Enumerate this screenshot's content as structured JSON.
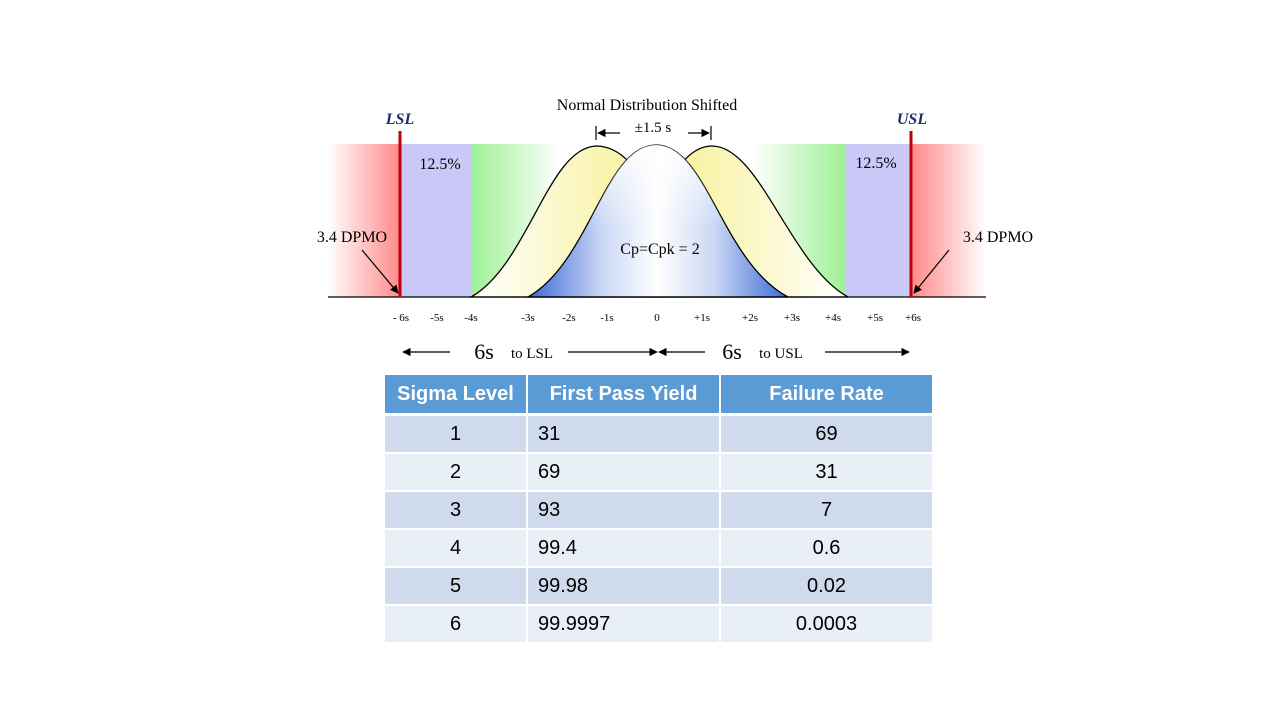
{
  "diagram": {
    "title": "Normal Distribution Shifted",
    "shift_label": "±1.5 s",
    "lsl_label": "LSL",
    "usl_label": "USL",
    "left_pct": "12.5%",
    "right_pct": "12.5%",
    "left_dpmo": "3.4 DPMO",
    "right_dpmo": "3.4 DPMO",
    "center_label": "Cp=Cpk = 2",
    "ticks": [
      "- 6s",
      "-5s",
      "-4s",
      "-3s",
      "-2s",
      "-1s",
      "0",
      "+1s",
      "+2s",
      "+3s",
      "+4s",
      "+5s",
      "+6s"
    ],
    "span_left_big": "6s",
    "span_left_small": "to LSL",
    "span_right_big": "6s",
    "span_right_small": "to USL",
    "colors": {
      "spec_line": "#c00000",
      "spec_label": "#1f2a6b",
      "red_zone": "#ff8a8a",
      "purple_zone": "#c9c8f7",
      "green_zone": "#aef0a6",
      "yellow_curve": "#f8f3a0",
      "blue_curve": "#3f6fd8"
    }
  },
  "table": {
    "headers": [
      "Sigma Level",
      "First Pass Yield",
      "Failure Rate"
    ],
    "rows": [
      {
        "sigma": "1",
        "yield": "31",
        "failure": "69"
      },
      {
        "sigma": "2",
        "yield": "69",
        "failure": "31"
      },
      {
        "sigma": "3",
        "yield": "93",
        "failure": "7"
      },
      {
        "sigma": "4",
        "yield": "99.4",
        "failure": "0.6"
      },
      {
        "sigma": "5",
        "yield": "99.98",
        "failure": "0.02"
      },
      {
        "sigma": "6",
        "yield": "99.9997",
        "failure": "0.0003"
      }
    ]
  }
}
